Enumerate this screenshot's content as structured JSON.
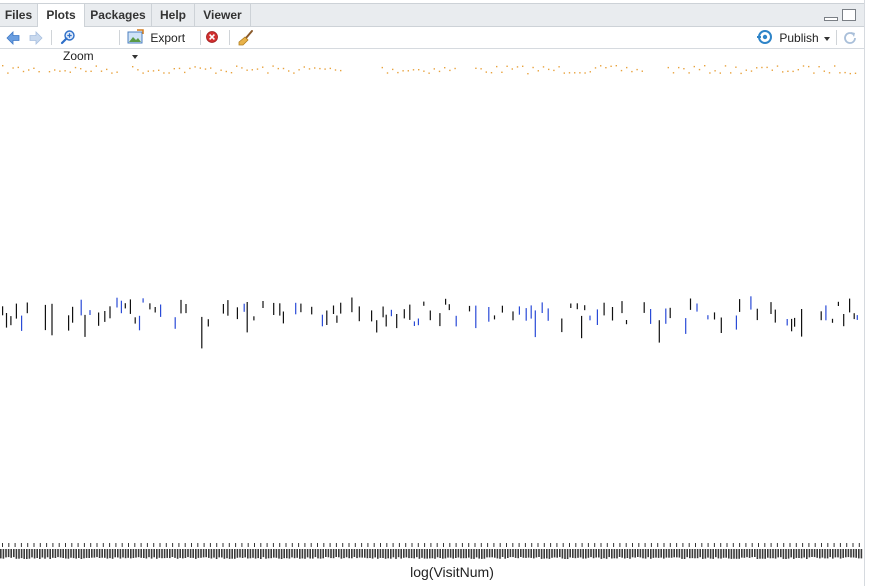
{
  "tabs": [
    {
      "label": "Files",
      "active": false
    },
    {
      "label": "Plots",
      "active": true
    },
    {
      "label": "Packages",
      "active": false
    },
    {
      "label": "Help",
      "active": false
    },
    {
      "label": "Viewer",
      "active": false
    }
  ],
  "toolbar": {
    "back_icon": "arrow-left-icon",
    "forward_icon": "arrow-right-icon",
    "zoom_label": "Zoom",
    "export_label": "Export",
    "remove_icon": "remove-plot-icon",
    "clear_icon": "broom-icon",
    "publish_label": "Publish",
    "refresh_icon": "refresh-icon"
  },
  "colors": {
    "accent": "#2e6fc8",
    "orange_points": "#e8a23c",
    "blue_bars": "#2a4bd7",
    "black_bars": "#111111"
  },
  "chart_data": {
    "type": "scatter",
    "xlabel": "log(VisitNum)",
    "notes": "Dense strip plot; x tick labels overprinted and illegible; y axis not shown",
    "series": [
      {
        "name": "",
        "color": "#e8a23c",
        "kind": "points-band-top"
      },
      {
        "name": "",
        "color": "#111111",
        "kind": "vertical-segments-middle"
      },
      {
        "name": "",
        "color": "#2a4bd7",
        "kind": "vertical-segments-middle"
      }
    ]
  }
}
